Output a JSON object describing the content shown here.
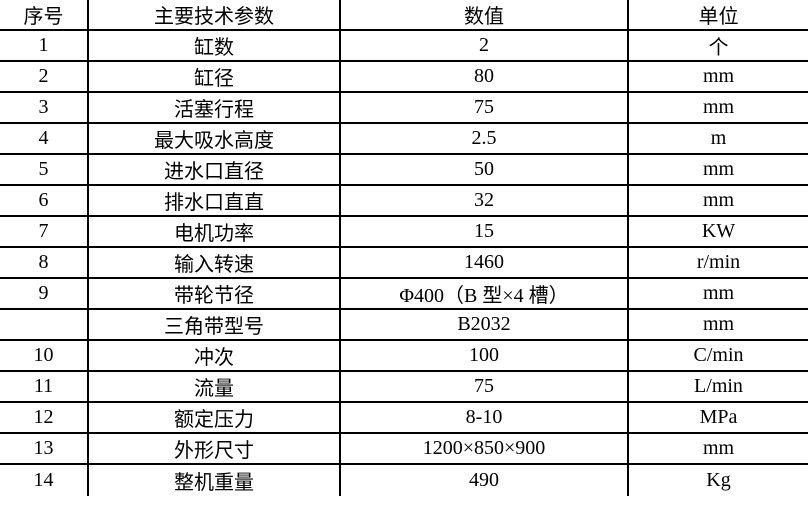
{
  "table": {
    "headers": [
      "序号",
      "主要技术参数",
      "数值",
      "单位"
    ],
    "rows": [
      [
        "1",
        "缸数",
        "2",
        "个"
      ],
      [
        "2",
        "缸径",
        "80",
        "mm"
      ],
      [
        "3",
        "活塞行程",
        "75",
        "mm"
      ],
      [
        "4",
        "最大吸水高度",
        "2.5",
        "m"
      ],
      [
        "5",
        "进水口直径",
        "50",
        "mm"
      ],
      [
        "6",
        "排水口直直",
        "32",
        "mm"
      ],
      [
        "7",
        "电机功率",
        "15",
        "KW"
      ],
      [
        "8",
        "输入转速",
        "1460",
        "r/min"
      ],
      [
        "9",
        "带轮节径",
        "Φ400（B 型×4 槽）",
        "mm"
      ],
      [
        "",
        "三角带型号",
        "B2032",
        "mm"
      ],
      [
        "10",
        "冲次",
        "100",
        "C/min"
      ],
      [
        "11",
        "流量",
        "75",
        "L/min"
      ],
      [
        "12",
        "额定压力",
        "8-10",
        "MPa"
      ],
      [
        "13",
        "外形尺寸",
        "1200×850×900",
        "mm"
      ],
      [
        "14",
        "整机重量",
        "490",
        "Kg"
      ]
    ]
  },
  "colors": {
    "border": "#000000",
    "text": "#000000",
    "background": "#ffffff"
  }
}
